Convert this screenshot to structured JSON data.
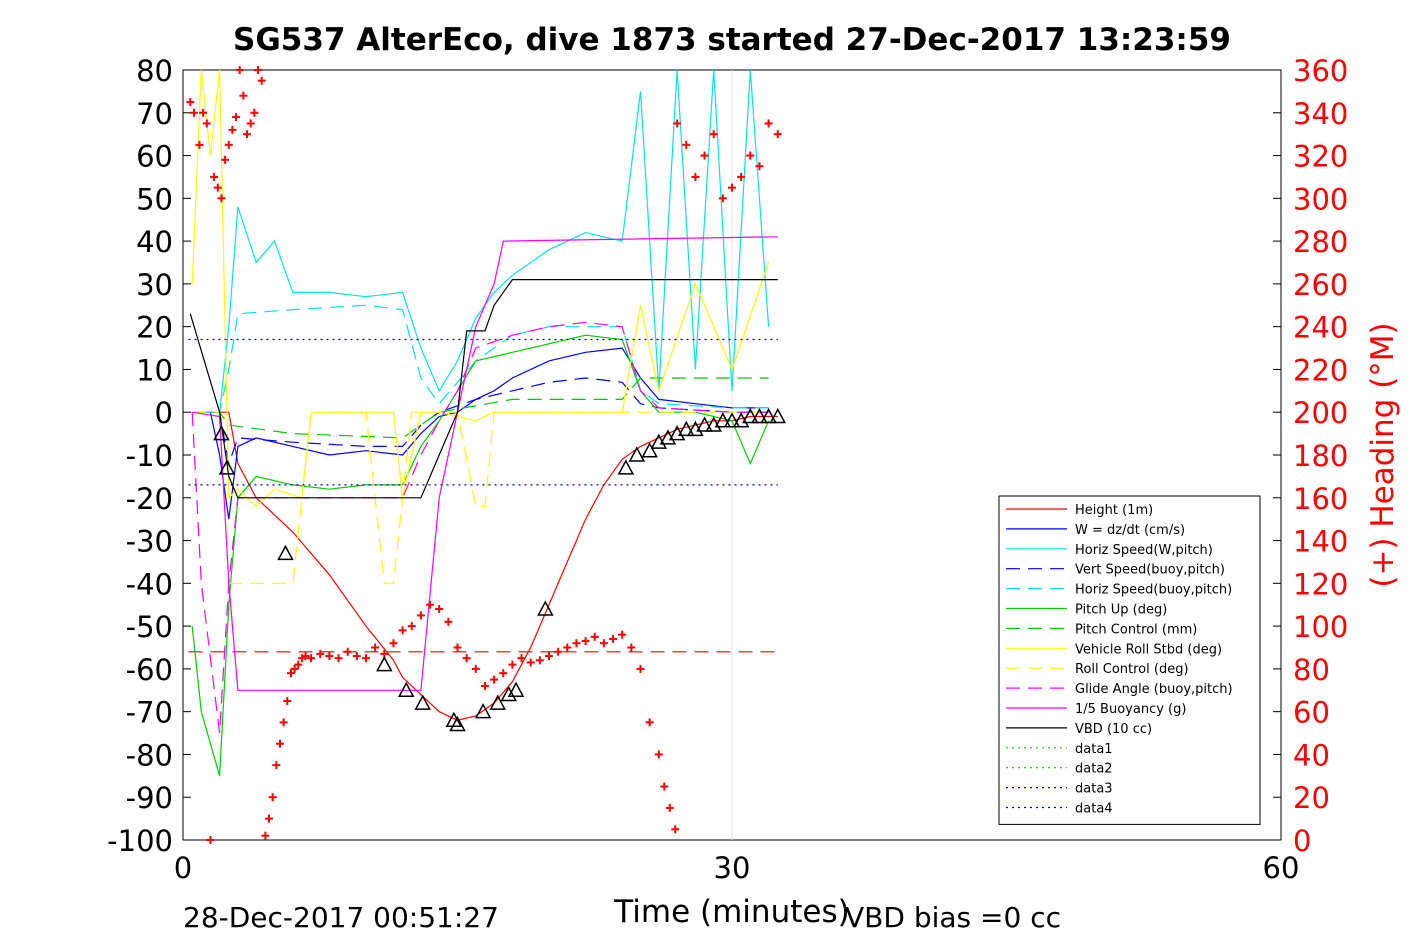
{
  "chart_data": {
    "type": "line",
    "title": "SG537 AlterEco, dive 1873 started 27-Dec-2017 13:23:59",
    "xlabel": "Time (minutes)",
    "ylabel_right": "(+) Heading (°M)",
    "xlim": [
      0,
      60
    ],
    "ylim_left": [
      -100,
      80
    ],
    "ylim_right": [
      0,
      360
    ],
    "x_ticks": [
      0,
      30,
      60
    ],
    "y_ticks_left": [
      80,
      70,
      60,
      50,
      40,
      30,
      20,
      10,
      0,
      -10,
      -20,
      -30,
      -40,
      -50,
      -60,
      -70,
      -80,
      -90,
      -100
    ],
    "y_ticks_right": [
      360,
      340,
      320,
      300,
      280,
      260,
      240,
      220,
      200,
      180,
      160,
      140,
      120,
      100,
      80,
      60,
      40,
      20,
      0
    ],
    "grid": "x-only at 30",
    "legend_placement": "lower-right",
    "footer_left": "28-Dec-2017 00:51:27",
    "footer_right": "VBD bias =0 cc",
    "series": [
      {
        "name": "Height (1m)",
        "color": "#ff0000",
        "style": "solid",
        "x": [
          0.5,
          1.5,
          2.5,
          3.0,
          4.0,
          6.0,
          8.0,
          10.0,
          11.5,
          12.0,
          13.0,
          14.0,
          15.0,
          16.0,
          17.0,
          18.0,
          19.0,
          20.0,
          21.0,
          22.0,
          23.0,
          24.0,
          25.0,
          26.0,
          27.0,
          28.0,
          29.0,
          30.0,
          31.0,
          32.0,
          32.5
        ],
        "y": [
          0,
          0,
          0,
          -12,
          -20,
          -28,
          -38,
          -50,
          -58,
          -62,
          -66,
          -70,
          -72,
          -71,
          -68,
          -63,
          -55,
          -45,
          -35,
          -25,
          -17,
          -11,
          -8,
          -6,
          -4,
          -3,
          -2,
          -2,
          -1,
          -1,
          -1
        ]
      },
      {
        "name": "W = dz/dt (cm/s)",
        "color": "#0000ff",
        "style": "solid",
        "x": [
          0.5,
          1.5,
          2.0,
          2.5,
          3.0,
          4.0,
          6.0,
          8.0,
          10.0,
          12.0,
          13.0,
          14.0,
          15.0,
          16.0,
          17.0,
          18.0,
          20.0,
          22.0,
          24.0,
          25.0,
          26.0,
          28.0,
          30.0,
          32.0
        ],
        "y": [
          0,
          0,
          -10,
          -25,
          -8,
          -6,
          -8,
          -10,
          -9,
          -10,
          -5,
          -1,
          0,
          3,
          5,
          8,
          12,
          14,
          15,
          8,
          3,
          2,
          1,
          1
        ]
      },
      {
        "name": "Horiz Speed(W,pitch)",
        "color": "#00e5e5",
        "style": "solid",
        "x": [
          0.5,
          2.0,
          2.5,
          3.0,
          4.0,
          5.0,
          6.0,
          8.0,
          10.0,
          12.0,
          13.0,
          14.0,
          15.0,
          16.0,
          17.0,
          18.0,
          20.0,
          22.0,
          24.0,
          25.0,
          26.0,
          27.0,
          28.0,
          29.0,
          30.0,
          31.0,
          32.0
        ],
        "y": [
          0,
          0,
          20,
          48,
          35,
          40,
          28,
          28,
          27,
          28,
          15,
          5,
          12,
          22,
          28,
          32,
          38,
          42,
          40,
          75,
          5,
          80,
          10,
          80,
          5,
          80,
          20
        ]
      },
      {
        "name": "Vert Speed(buoy,pitch)",
        "color": "#0000ff",
        "style": "dashed",
        "x": [
          0.5,
          2.0,
          2.5,
          3.0,
          6.0,
          10.0,
          12.0,
          13.0,
          14.0,
          16.0,
          18.0,
          20.0,
          22.0,
          24.0,
          25.0,
          26.0,
          30.0,
          32.0
        ],
        "y": [
          0,
          0,
          -12,
          -6,
          -7,
          -8,
          -8,
          -3,
          0,
          3,
          5,
          7,
          8,
          7,
          2,
          1,
          0,
          0
        ]
      },
      {
        "name": "Horiz Speed(buoy,pitch)",
        "color": "#00e5e5",
        "style": "dashed",
        "x": [
          0.5,
          2.0,
          2.5,
          3.0,
          6.0,
          10.0,
          12.0,
          13.0,
          14.0,
          16.0,
          18.0,
          20.0,
          22.0,
          24.0,
          25.0,
          26.0,
          30.0,
          32.0
        ],
        "y": [
          0,
          0,
          10,
          23,
          24,
          25,
          24,
          8,
          2,
          12,
          18,
          20,
          20,
          20,
          5,
          2,
          1,
          1
        ]
      },
      {
        "name": "Pitch Up (deg)",
        "color": "#00cc00",
        "style": "solid",
        "x": [
          0.5,
          1.0,
          2.0,
          2.5,
          3.0,
          4.0,
          6.0,
          8.0,
          10.0,
          12.0,
          13.0,
          14.0,
          16.0,
          18.0,
          20.0,
          22.0,
          24.0,
          25.0,
          26.0,
          28.0,
          30.0,
          31.0,
          32.0
        ],
        "y": [
          -50,
          -70,
          -85,
          -45,
          -20,
          -15,
          -17,
          -18,
          -17,
          -17,
          -8,
          -2,
          12,
          14,
          16,
          18,
          17,
          5,
          0,
          0,
          -2,
          -12,
          -2
        ]
      },
      {
        "name": "Pitch Control (mm)",
        "color": "#00cc00",
        "style": "dashed",
        "x": [
          0.5,
          2.0,
          2.5,
          6.0,
          12.0,
          13.0,
          14.0,
          18.0,
          24.0,
          25.0,
          32.0
        ],
        "y": [
          0,
          0,
          -3,
          -5,
          -6,
          -3,
          0,
          3,
          3,
          8,
          8
        ]
      },
      {
        "name": "Vehicle Roll Stbd (deg)",
        "color": "#ffff00",
        "style": "solid",
        "x": [
          0.5,
          1.0,
          1.5,
          2.0,
          2.5,
          3.0,
          4.0,
          5.0,
          6.5,
          7.0,
          10.0,
          11.5,
          12.0,
          13.0,
          14.0,
          16.0,
          17.0,
          20.0,
          22.0,
          24.0,
          25.0,
          26.0,
          28.0,
          30.0,
          32.0
        ],
        "y": [
          30,
          80,
          60,
          80,
          -20,
          -18,
          -22,
          -18,
          -20,
          0,
          0,
          0,
          -20,
          0,
          0,
          -2,
          0,
          0,
          0,
          0,
          25,
          5,
          30,
          10,
          35
        ]
      },
      {
        "name": "Roll Control (deg)",
        "color": "#ffff00",
        "style": "dashed",
        "x": [
          0.5,
          2.0,
          2.5,
          3.0,
          5.0,
          6.0,
          7.0,
          10.0,
          11.0,
          11.5,
          12.5,
          13.0,
          15.0,
          16.0,
          16.5,
          17.0,
          18.0,
          24.0,
          25.0,
          32.0
        ],
        "y": [
          0,
          0,
          -40,
          -40,
          -40,
          -40,
          0,
          0,
          -40,
          -40,
          0,
          0,
          0,
          -22,
          -22,
          0,
          0,
          0,
          0,
          0
        ]
      },
      {
        "name": "Glide Angle (buoy,pitch)",
        "color": "#ff00ff",
        "style": "dashed",
        "x": [
          0.5,
          1.0,
          2.0,
          2.5,
          3.0,
          6.0,
          10.0,
          12.0,
          13.0,
          14.0,
          15.0,
          16.0,
          18.0,
          20.0,
          22.0,
          24.0,
          25.0,
          26.0,
          30.0,
          32.0
        ],
        "y": [
          0,
          -40,
          -75,
          -40,
          -20,
          -20,
          -20,
          -20,
          -10,
          -2,
          5,
          15,
          18,
          20,
          21,
          20,
          5,
          1,
          0,
          0
        ]
      },
      {
        "name": "1/5 Buoyancy (g)",
        "color": "#ff00ff",
        "style": "solid",
        "x": [
          0.5,
          2.0,
          2.5,
          3.0,
          12.0,
          13.0,
          14.0,
          15.0,
          16.0,
          17.0,
          17.5,
          32.5
        ],
        "y": [
          0,
          -1,
          -40,
          -65,
          -65,
          -65,
          -20,
          0,
          20,
          30,
          40,
          41
        ]
      },
      {
        "name": "VBD (10 cc)",
        "color": "#000000",
        "style": "solid",
        "x": [
          0.4,
          2.0,
          2.5,
          3.0,
          12.0,
          13.0,
          14.0,
          15.0,
          15.5,
          16.5,
          17.0,
          18.0,
          32.5
        ],
        "y": [
          23,
          0,
          -15,
          -20,
          -20,
          -20,
          -10,
          0,
          19,
          19,
          25,
          31,
          31
        ]
      },
      {
        "name": "data1",
        "color": "#00cc00",
        "style": "dotted",
        "x": [],
        "y": []
      },
      {
        "name": "data2",
        "color": "#00cc00",
        "style": "dotted",
        "x": [],
        "y": []
      },
      {
        "name": "data3",
        "color": "#0000aa",
        "style": "dotted",
        "x": [
          0.3,
          32.5
        ],
        "y": [
          17,
          17
        ]
      },
      {
        "name": "data4",
        "color": "#0000aa",
        "style": "dotted",
        "x": [
          0.3,
          32.5
        ],
        "y": [
          -17,
          -17
        ]
      }
    ],
    "reference_lines": [
      {
        "color": "#ff0000",
        "style": "dashed",
        "x": [
          0.3,
          32.5
        ],
        "y": [
          -56,
          -56
        ]
      }
    ],
    "heading_points": {
      "color": "#ff0000",
      "marker": "+",
      "axis": "right",
      "x": [
        0.4,
        0.6,
        0.9,
        1.1,
        1.3,
        1.5,
        1.7,
        1.9,
        2.1,
        2.3,
        2.5,
        2.7,
        2.9,
        3.1,
        3.3,
        3.5,
        3.7,
        3.9,
        4.1,
        4.3,
        4.5,
        4.7,
        4.9,
        5.1,
        5.3,
        5.5,
        5.7,
        5.9,
        6.1,
        6.3,
        6.5,
        6.7,
        7.0,
        7.5,
        8.0,
        8.5,
        9.0,
        9.5,
        10.0,
        10.5,
        11.0,
        11.5,
        12.0,
        12.5,
        13.0,
        13.5,
        14.0,
        14.5,
        15.0,
        15.5,
        16.0,
        16.5,
        17.0,
        17.5,
        18.0,
        18.5,
        19.0,
        19.5,
        20.0,
        20.5,
        21.0,
        21.5,
        22.0,
        22.5,
        23.0,
        23.5,
        24.0,
        24.5,
        25.0,
        25.5,
        26.0,
        26.3,
        26.6,
        26.9,
        27.0,
        27.5,
        28.0,
        28.5,
        29.0,
        29.5,
        30.0,
        30.5,
        31.0,
        31.5,
        32.0,
        32.5
      ],
      "y": [
        345,
        340,
        325,
        340,
        335,
        0,
        310,
        305,
        300,
        318,
        325,
        332,
        338,
        360,
        348,
        330,
        335,
        340,
        360,
        355,
        2,
        10,
        20,
        35,
        45,
        55,
        65,
        78,
        80,
        82,
        85,
        86,
        85,
        87,
        86,
        85,
        88,
        86,
        85,
        90,
        87,
        92,
        98,
        100,
        105,
        110,
        108,
        102,
        90,
        85,
        80,
        72,
        75,
        78,
        82,
        85,
        83,
        84,
        86,
        88,
        90,
        92,
        93,
        95,
        92,
        94,
        96,
        90,
        80,
        55,
        40,
        25,
        15,
        5,
        335,
        325,
        310,
        320,
        330,
        300,
        305,
        310,
        320,
        315,
        335,
        330
      ]
    },
    "dive_markers": {
      "color": "#000000",
      "marker": "triangle",
      "x": [
        2.1,
        2.4,
        5.6,
        11.0,
        12.2,
        13.1,
        14.8,
        15.0,
        16.4,
        17.2,
        17.8,
        18.2,
        19.8,
        24.2,
        24.8,
        25.5,
        26.0,
        26.5,
        27.0,
        27.5,
        28.0,
        28.5,
        29.0,
        29.5,
        30.0,
        30.5,
        31.0,
        31.5,
        32.0,
        32.5
      ],
      "y": [
        -5,
        -13,
        -33,
        -59,
        -65,
        -68,
        -72,
        -73,
        -70,
        -68,
        -66,
        -65,
        -46,
        -13,
        -10,
        -9,
        -7,
        -6,
        -5,
        -4,
        -4,
        -3,
        -3,
        -2,
        -2,
        -2,
        -1,
        -1,
        -1,
        -1
      ]
    }
  }
}
